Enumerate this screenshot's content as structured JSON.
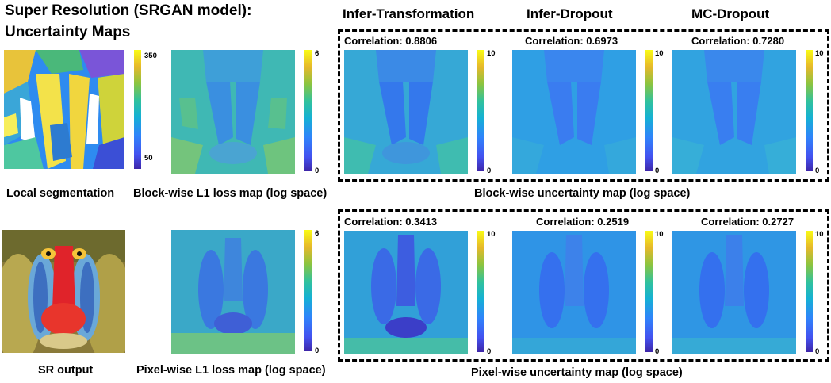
{
  "title_line1": "Super Resolution (SRGAN model):",
  "title_line2": "Uncertainty Maps",
  "columns": {
    "infer_transformation": "Infer-Transformation",
    "infer_dropout": "Infer-Dropout",
    "mc_dropout": "MC-Dropout"
  },
  "block_row": {
    "correlations": [
      "Correlation: 0.8806",
      "Correlation: 0.6973",
      "Correlation: 0.7280"
    ],
    "caption": "Block-wise uncertainty map (log space)"
  },
  "pixel_row": {
    "correlations": [
      "Correlation: 0.3413",
      "Correlation: 0.2519",
      "Correlation: 0.2727"
    ],
    "caption": "Pixel-wise uncertainty map (log space)"
  },
  "captions": {
    "segmentation": "Local segmentation",
    "block_l1": "Block-wise L1 loss map (log space)",
    "sr_output": "SR output",
    "pixel_l1": "Pixel-wise L1 loss map (log space)"
  },
  "colorbar_ticks": {
    "segmentation_max": "350",
    "segmentation_min": "50",
    "l1_max": "6",
    "l1_min": "0",
    "unc_max": "10",
    "unc_min": "0"
  },
  "colors": {
    "low": "#3e26a8",
    "mid": "#15b1d4",
    "high": "#f9fb15"
  }
}
